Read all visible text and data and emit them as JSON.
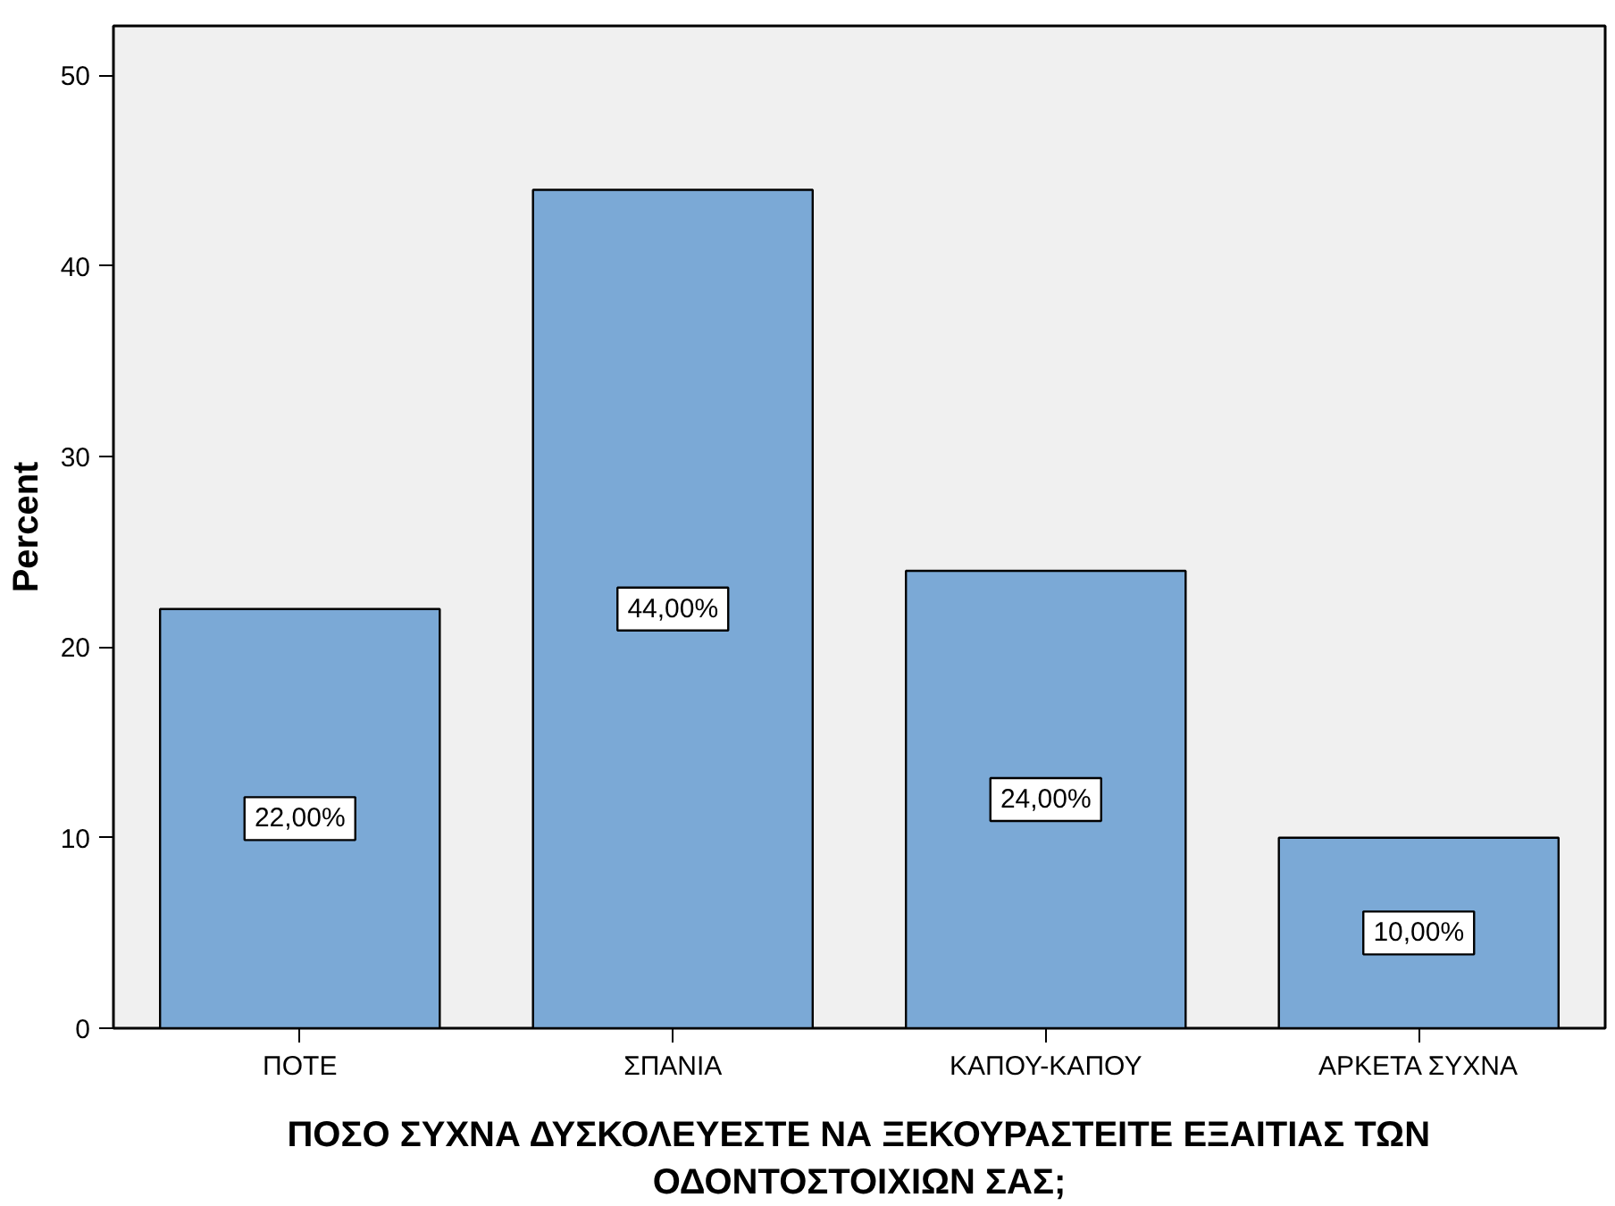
{
  "chart_data": {
    "type": "bar",
    "categories": [
      "ΠΟΤΕ",
      "ΣΠΑΝΙΑ",
      "ΚΑΠΟΥ-ΚΑΠΟΥ",
      "ΑΡΚΕΤΑ ΣΥΧΝΑ"
    ],
    "values": [
      22,
      44,
      24,
      10
    ],
    "value_labels": [
      "22,00%",
      "44,00%",
      "24,00%",
      "10,00%"
    ],
    "color": "#7ba9d6",
    "xlabel": "ΠΟΣΟ ΣΥΧΝΑ ΔΥΣΚΟΛΕΥΕΣΤΕ ΝΑ ΞΕΚΟΥΡΑΣΤΕΙΤΕ ΕΞΑΙΤΙΑΣ ΤΩΝ ΟΔΟΝΤΟΣΤΟΙΧΙΩΝ ΣΑΣ;",
    "ylabel": "Percent",
    "ylim": [
      0,
      52.6
    ],
    "yticks": [
      0,
      10,
      20,
      30,
      40,
      50
    ],
    "grid": false
  }
}
